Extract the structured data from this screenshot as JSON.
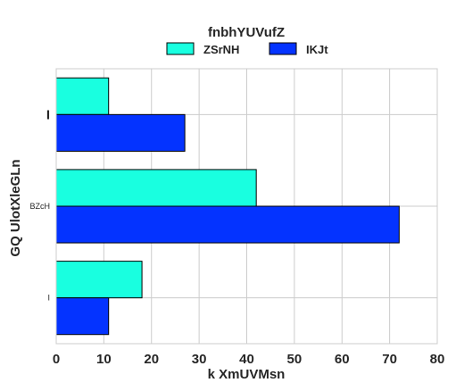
{
  "chart_data": {
    "type": "bar",
    "orientation": "horizontal",
    "title": "fnbhYUVufZ",
    "xlabel": "k  XmUVMsn",
    "ylabel": "GQ UlotXleGLn",
    "categories": [
      "I",
      "BZcH",
      "I"
    ],
    "category_tick_styles": [
      "bold-large",
      "small",
      "small"
    ],
    "series": [
      {
        "name": "ZSrNH",
        "values": [
          11,
          42,
          18
        ],
        "color": "#19ffe0"
      },
      {
        "name": "IKJt",
        "values": [
          27,
          72,
          11
        ],
        "color": "#0433ff"
      }
    ],
    "xlim": [
      0,
      80
    ],
    "xticks": [
      0,
      10,
      20,
      30,
      40,
      50,
      60,
      70,
      80
    ],
    "grid": true,
    "legend_position": "top-center"
  }
}
